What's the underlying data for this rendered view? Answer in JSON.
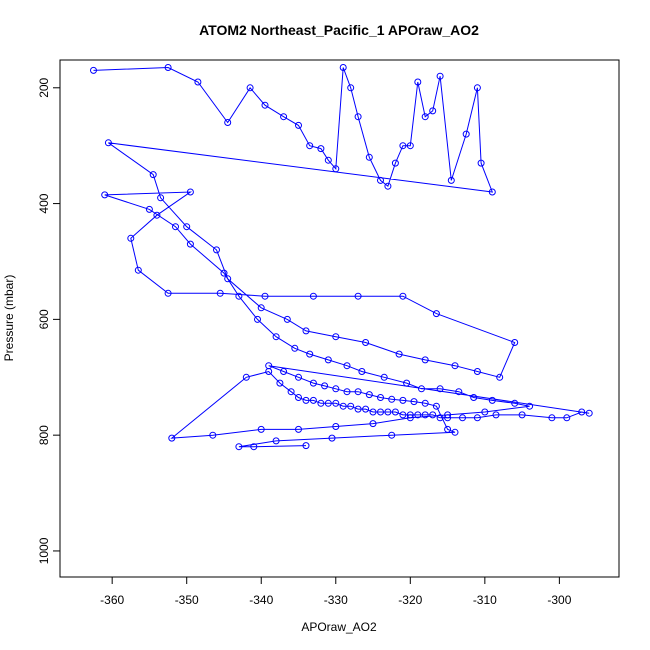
{
  "chart_data": {
    "type": "line",
    "title": "ATOM2 Northeast_Pacific_1 APOraw_AO2",
    "xlabel": "APOraw_AO2",
    "ylabel": "Pressure (mbar)",
    "xlim": [
      -367,
      -292
    ],
    "ylim": [
      1045,
      152
    ],
    "y_reversed": true,
    "x_ticks": [
      -360,
      -350,
      -340,
      -330,
      -320,
      -310,
      -300
    ],
    "x_tick_labels": [
      "-360",
      "-350",
      "-340",
      "-330",
      "-320",
      "-310",
      "-300"
    ],
    "y_ticks": [
      200,
      400,
      600,
      800,
      1000
    ],
    "y_tick_labels": [
      "200",
      "400",
      "600",
      "800",
      "1000"
    ],
    "series": [
      {
        "color": "#0000ff",
        "marker": "open-circle",
        "connected": true,
        "x": [
          -362.5,
          -352.5,
          -348.5,
          -344.5,
          -341.5,
          -339.5,
          -337.0,
          -335.0,
          -333.5,
          -332.0,
          -331.0,
          -330.0,
          -329.0,
          -328.0,
          -327.0,
          -325.5,
          -324.0,
          -323.0,
          -322.0,
          -321.0,
          -320.0,
          -319.0,
          -318.0,
          -317.0,
          -316.0,
          -314.5,
          -312.5,
          -311.0,
          -310.5,
          -309.0,
          -360.5,
          -354.5,
          -353.5,
          -350.0,
          -346.0,
          -344.5,
          -340.0,
          -336.5,
          -334.0,
          -330.0,
          -326.0,
          -321.5,
          -318.0,
          -314.0,
          -311.0,
          -308.0,
          -306.0,
          -316.5,
          -321.0,
          -327.0,
          -333.0,
          -339.5,
          -345.5,
          -352.5,
          -356.5,
          -357.5,
          -354.0,
          -349.5,
          -361.0,
          -355.0,
          -351.5,
          -349.5,
          -345.0,
          -343.0,
          -340.5,
          -338.0,
          -335.5,
          -333.5,
          -331.0,
          -328.5,
          -326.5,
          -323.5,
          -320.5,
          -318.5,
          -316.0,
          -313.5,
          -311.5,
          -309.0,
          -306.0,
          -304.0,
          -310.0,
          -315.0,
          -320.0,
          -325.0,
          -330.0,
          -335.0,
          -340.0,
          -346.5,
          -352.0,
          -342.0,
          -339.0,
          -337.5,
          -336.0,
          -335.0,
          -334.0,
          -333.0,
          -332.0,
          -331.0,
          -330.0,
          -329.0,
          -328.0,
          -327.0,
          -326.0,
          -325.0,
          -324.0,
          -323.0,
          -322.0,
          -321.0,
          -320.0,
          -319.0,
          -318.0,
          -317.0,
          -316.0,
          -315.0,
          -313.0,
          -311.0,
          -308.5,
          -305.0,
          -301.0,
          -299.0,
          -297.0,
          -296.0,
          -339.0,
          -337.0,
          -335.0,
          -333.0,
          -331.5,
          -330.0,
          -328.5,
          -327.0,
          -325.5,
          -324.0,
          -322.5,
          -321.0,
          -319.5,
          -318.0,
          -316.5,
          -315.0,
          -314.0,
          -322.5,
          -330.5,
          -338.0,
          -343.0,
          -341.0,
          -334.0
        ],
        "y": [
          170,
          165,
          190,
          260,
          200,
          230,
          250,
          265,
          300,
          305,
          325,
          340,
          165,
          200,
          250,
          320,
          360,
          370,
          330,
          300,
          300,
          190,
          250,
          240,
          180,
          360,
          280,
          200,
          330,
          380,
          295,
          350,
          390,
          440,
          480,
          530,
          580,
          600,
          620,
          630,
          640,
          660,
          670,
          680,
          690,
          700,
          640,
          590,
          560,
          560,
          560,
          560,
          555,
          555,
          515,
          460,
          420,
          380,
          385,
          410,
          440,
          470,
          520,
          560,
          600,
          630,
          650,
          660,
          670,
          680,
          690,
          700,
          710,
          720,
          720,
          725,
          735,
          740,
          745,
          750,
          760,
          765,
          770,
          780,
          785,
          790,
          790,
          800,
          805,
          700,
          690,
          710,
          725,
          735,
          740,
          740,
          745,
          745,
          745,
          750,
          750,
          755,
          755,
          760,
          760,
          760,
          760,
          765,
          765,
          765,
          765,
          765,
          770,
          770,
          770,
          770,
          765,
          765,
          770,
          770,
          760,
          762,
          680,
          690,
          700,
          710,
          715,
          720,
          725,
          725,
          730,
          735,
          738,
          740,
          742,
          745,
          750,
          790,
          795,
          800,
          805,
          810,
          820,
          820,
          818
        ]
      }
    ]
  }
}
